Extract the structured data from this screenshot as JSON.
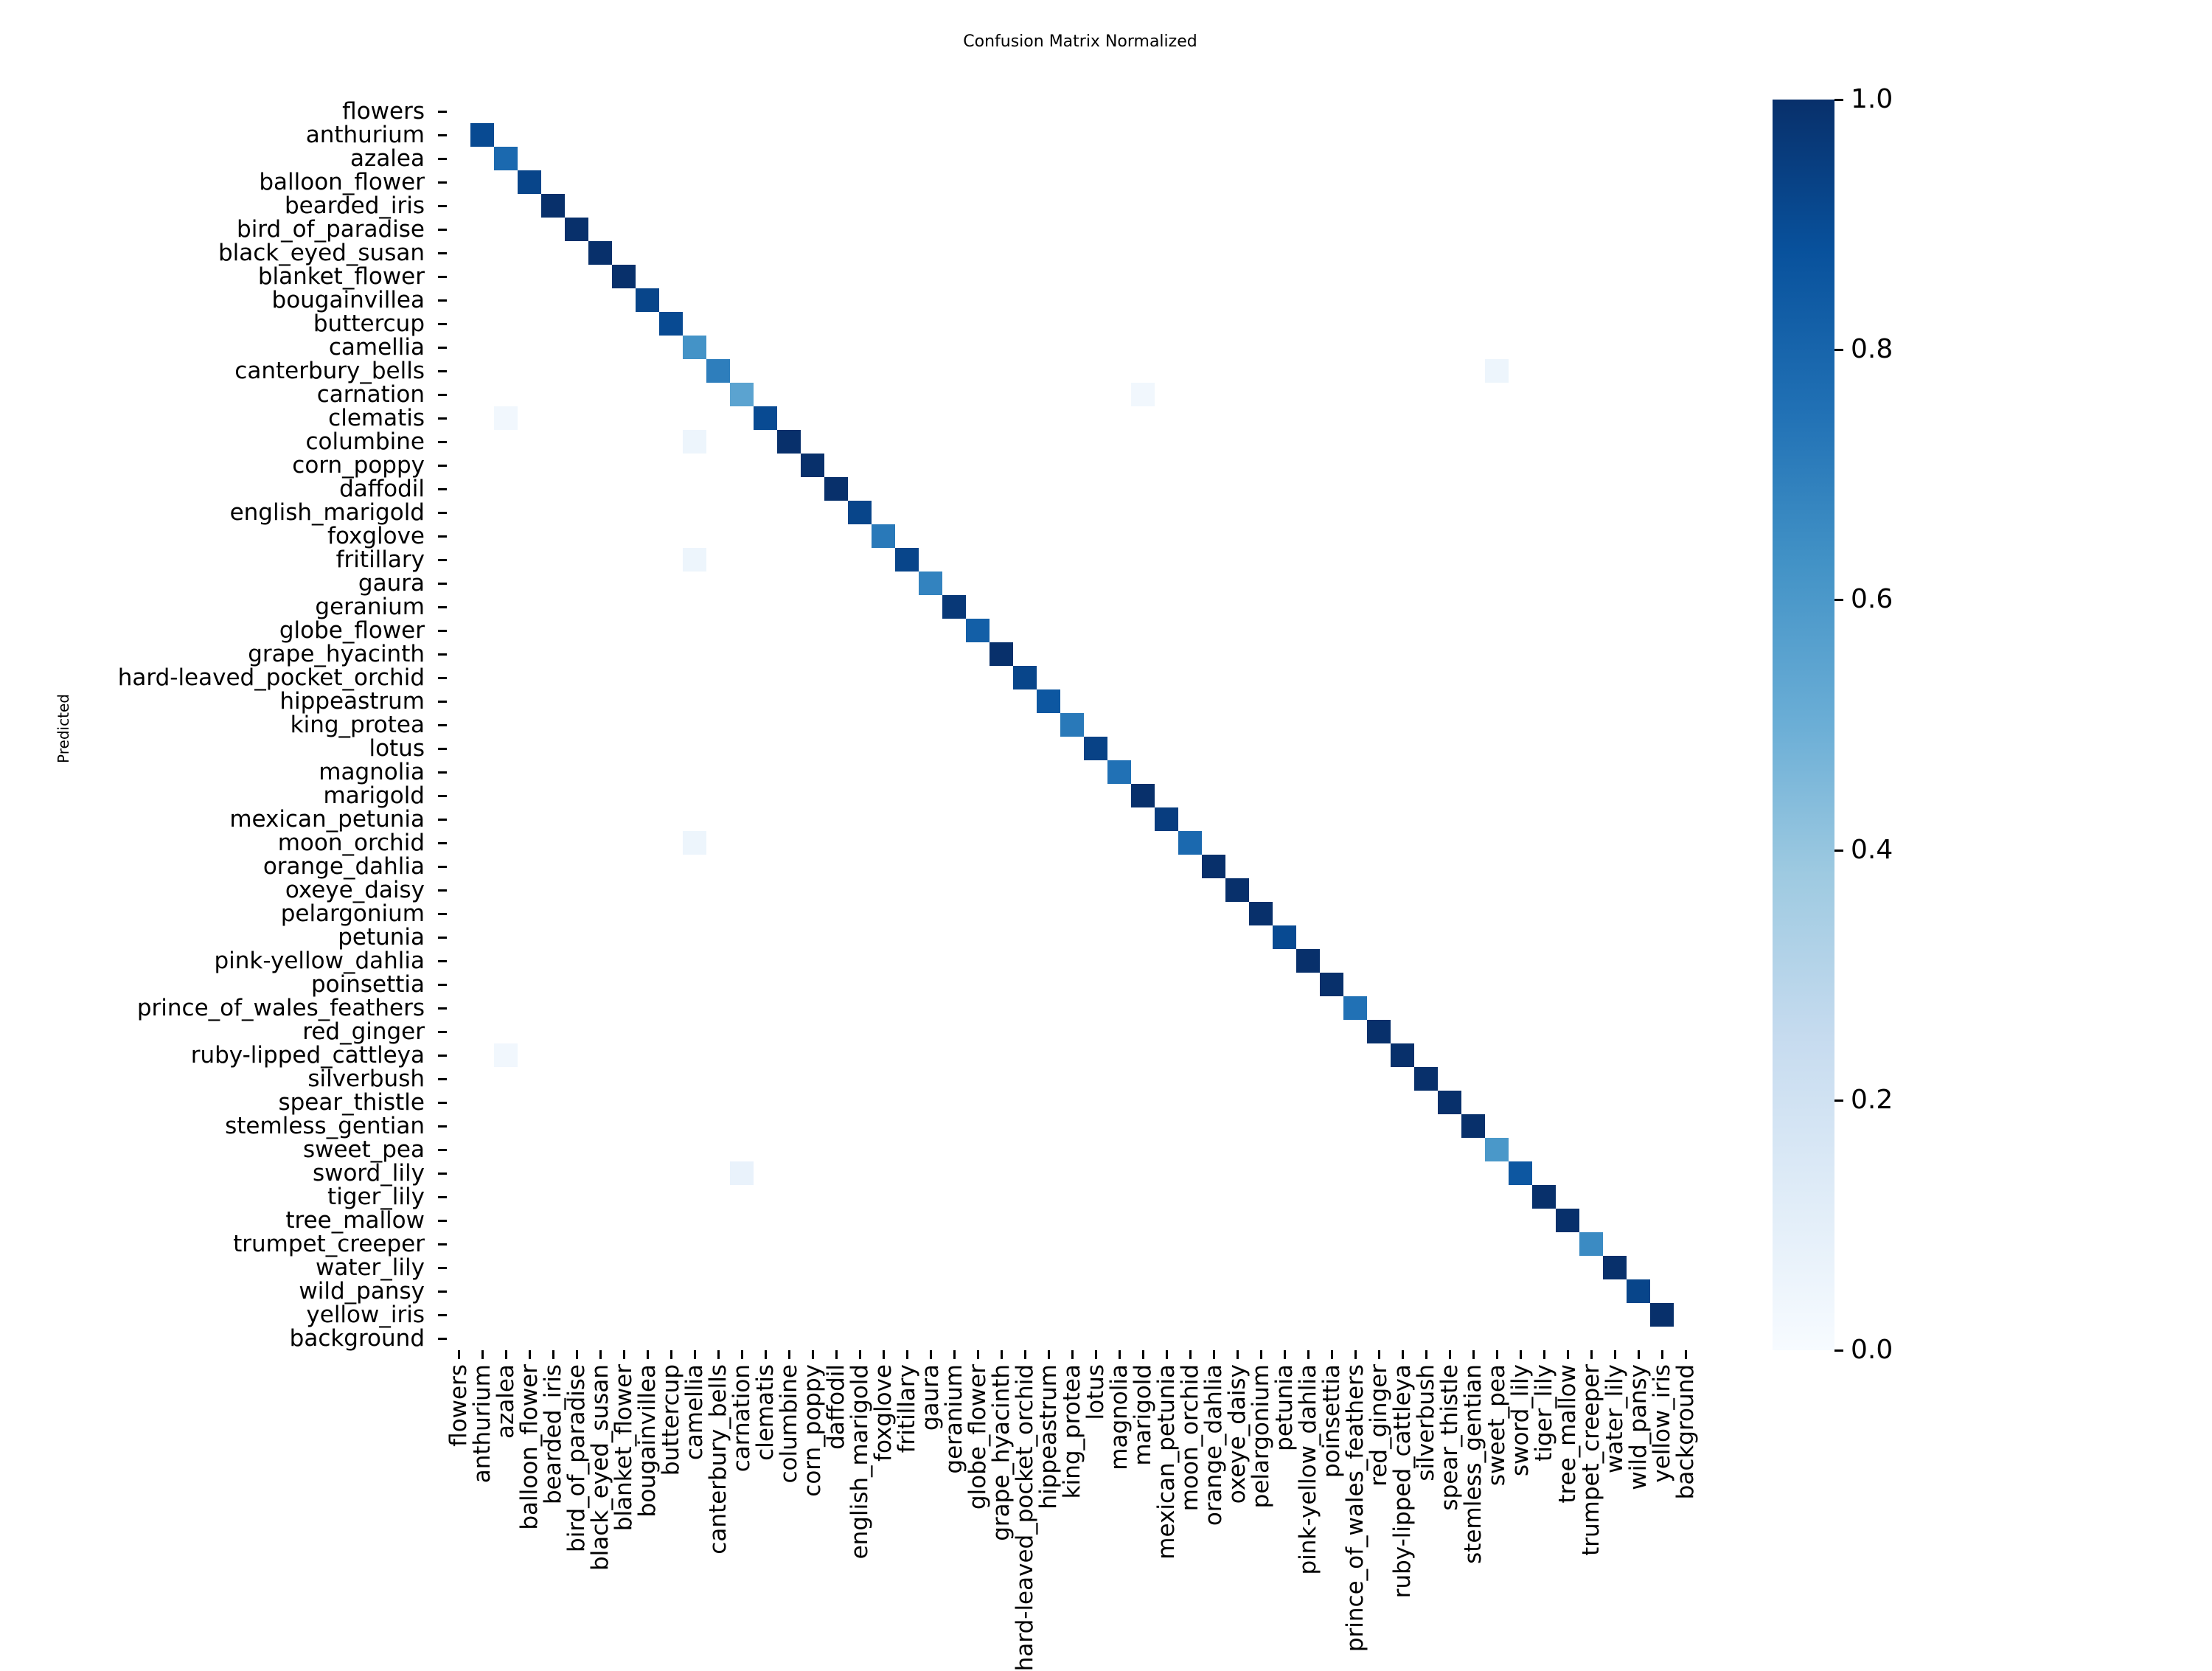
{
  "chart_data": {
    "type": "heatmap",
    "title": "Confusion Matrix Normalized",
    "xlabel": "",
    "ylabel": "Predicted",
    "colormap": "Blues",
    "colorbar": {
      "min": 0.0,
      "max": 1.0,
      "ticks": [
        "0.0",
        "0.2",
        "0.4",
        "0.6",
        "0.8",
        "1.0"
      ]
    },
    "labels": [
      "flowers",
      "anthurium",
      "azalea",
      "balloon_flower",
      "bearded_iris",
      "bird_of_paradise",
      "black_eyed_susan",
      "blanket_flower",
      "bougainvillea",
      "buttercup",
      "camellia",
      "canterbury_bells",
      "carnation",
      "clematis",
      "columbine",
      "corn_poppy",
      "daffodil",
      "english_marigold",
      "foxglove",
      "fritillary",
      "gaura",
      "geranium",
      "globe_flower",
      "grape_hyacinth",
      "hard-leaved_pocket_orchid",
      "hippeastrum",
      "king_protea",
      "lotus",
      "magnolia",
      "marigold",
      "mexican_petunia",
      "moon_orchid",
      "orange_dahlia",
      "oxeye_daisy",
      "pelargonium",
      "petunia",
      "pink-yellow_dahlia",
      "poinsettia",
      "prince_of_wales_feathers",
      "red_ginger",
      "ruby-lipped_cattleya",
      "silverbush",
      "spear_thistle",
      "stemless_gentian",
      "sweet_pea",
      "sword_lily",
      "tiger_lily",
      "tree_mallow",
      "trumpet_creeper",
      "water_lily",
      "wild_pansy",
      "yellow_iris",
      "background"
    ],
    "diagonal": [
      0,
      0.9,
      0.78,
      0.92,
      1.0,
      1.0,
      1.0,
      1.0,
      0.92,
      0.9,
      0.62,
      0.7,
      0.55,
      0.9,
      1.0,
      1.0,
      1.0,
      0.92,
      0.72,
      0.92,
      0.68,
      0.97,
      0.82,
      1.0,
      0.92,
      0.85,
      0.72,
      0.93,
      0.75,
      1.0,
      0.95,
      0.78,
      1.0,
      1.0,
      1.0,
      0.9,
      1.0,
      1.0,
      0.75,
      1.0,
      1.0,
      1.0,
      1.0,
      1.0,
      0.6,
      0.85,
      1.0,
      1.0,
      0.65,
      1.0,
      0.92,
      1.0,
      0
    ],
    "off_diagonal": [
      {
        "row": "canterbury_bells",
        "col": "sweet_pea",
        "value": 0.05
      },
      {
        "row": "carnation",
        "col": "marigold",
        "value": 0.03
      },
      {
        "row": "clematis",
        "col": "azalea",
        "value": 0.03
      },
      {
        "row": "columbine",
        "col": "camellia",
        "value": 0.05
      },
      {
        "row": "fritillary",
        "col": "camellia",
        "value": 0.05
      },
      {
        "row": "moon_orchid",
        "col": "camellia",
        "value": 0.05
      },
      {
        "row": "ruby-lipped_cattleya",
        "col": "azalea",
        "value": 0.03
      },
      {
        "row": "sword_lily",
        "col": "carnation",
        "value": 0.07
      }
    ],
    "grid": false,
    "legend": "colorbar-right"
  },
  "colors": {
    "min": "#f7fbff",
    "max": "#08306b"
  }
}
